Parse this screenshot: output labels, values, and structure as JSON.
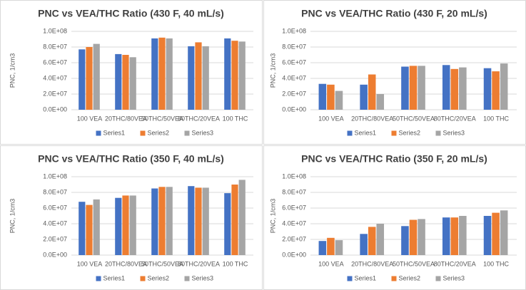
{
  "chart_data": [
    {
      "type": "bar",
      "title": "PNC vs VEA/THC Ratio (430 F, 40 mL/s)",
      "y_label": "PNC, 1/cm3",
      "categories": [
        "100 VEA",
        "20THC/80VEA",
        "50THC/50VEA",
        "80THC/20VEA",
        "100 THC"
      ],
      "series": [
        {
          "name": "Series1",
          "color": "#4472c4",
          "values": [
            77000000,
            71000000,
            91000000,
            81000000,
            91000000
          ]
        },
        {
          "name": "Series2",
          "color": "#ed7d31",
          "values": [
            80000000,
            70000000,
            92000000,
            86000000,
            88000000
          ]
        },
        {
          "name": "Series3",
          "color": "#a5a5a5",
          "values": [
            84000000,
            67000000,
            91000000,
            81000000,
            87000000
          ]
        }
      ],
      "ylim": [
        0,
        100000000
      ],
      "yticks": [
        {
          "value": 0,
          "label": "0.0E+00"
        },
        {
          "value": 20000000,
          "label": "2.0E+07"
        },
        {
          "value": 40000000,
          "label": "4.0E+07"
        },
        {
          "value": 60000000,
          "label": "6.0E+07"
        },
        {
          "value": 80000000,
          "label": "8.0E+07"
        },
        {
          "value": 100000000,
          "label": "1.0E+08"
        }
      ],
      "grid": true,
      "legend": "bottom"
    },
    {
      "type": "bar",
      "title": "PNC vs VEA/THC Ratio (430 F, 20 mL/s)",
      "y_label": "PNC, 1/cm3",
      "categories": [
        "100 VEA",
        "20THC/80VEA",
        "50THC/50VEA",
        "80THC/20VEA",
        "100 THC"
      ],
      "series": [
        {
          "name": "Series1",
          "color": "#4472c4",
          "values": [
            33000000,
            32000000,
            55000000,
            57000000,
            53000000
          ]
        },
        {
          "name": "Series2",
          "color": "#ed7d31",
          "values": [
            32000000,
            45000000,
            56000000,
            52000000,
            49000000
          ]
        },
        {
          "name": "Series3",
          "color": "#a5a5a5",
          "values": [
            24000000,
            20000000,
            56000000,
            54000000,
            59000000
          ]
        }
      ],
      "ylim": [
        0,
        100000000
      ],
      "yticks": [
        {
          "value": 0,
          "label": "0.0E+00"
        },
        {
          "value": 20000000,
          "label": "2.0E+07"
        },
        {
          "value": 40000000,
          "label": "4.0E+07"
        },
        {
          "value": 60000000,
          "label": "6.0E+07"
        },
        {
          "value": 80000000,
          "label": "8.0E+07"
        },
        {
          "value": 100000000,
          "label": "1.0E+08"
        }
      ],
      "grid": true,
      "legend": "bottom"
    },
    {
      "type": "bar",
      "title": "PNC vs VEA/THC Ratio (350 F, 40 mL/s)",
      "y_label": "PNC, 1/cm3",
      "categories": [
        "100 VEA",
        "20THC/80VEA",
        "50THC/50VEA",
        "80THC/20VEA",
        "100 THC"
      ],
      "series": [
        {
          "name": "Series1",
          "color": "#4472c4",
          "values": [
            68000000,
            73000000,
            85000000,
            88000000,
            79000000
          ]
        },
        {
          "name": "Series2",
          "color": "#ed7d31",
          "values": [
            64000000,
            76000000,
            87000000,
            86000000,
            90000000
          ]
        },
        {
          "name": "Series3",
          "color": "#a5a5a5",
          "values": [
            71000000,
            76000000,
            87000000,
            86000000,
            96000000
          ]
        }
      ],
      "ylim": [
        0,
        100000000
      ],
      "yticks": [
        {
          "value": 0,
          "label": "0.0E+00"
        },
        {
          "value": 20000000,
          "label": "2.0E+07"
        },
        {
          "value": 40000000,
          "label": "4.0E+07"
        },
        {
          "value": 60000000,
          "label": "6.0E+07"
        },
        {
          "value": 80000000,
          "label": "8.0E+07"
        },
        {
          "value": 100000000,
          "label": "1.0E+08"
        }
      ],
      "grid": true,
      "legend": "bottom"
    },
    {
      "type": "bar",
      "title": "PNC vs VEA/THC Ratio (350 F, 20 mL/s)",
      "y_label": "PNC, 1/cm3",
      "categories": [
        "100 VEA",
        "20THC/80VEA",
        "50THC/50VEA",
        "80THC/20VEA",
        "100 THC"
      ],
      "series": [
        {
          "name": "Series1",
          "color": "#4472c4",
          "values": [
            18000000,
            27000000,
            37000000,
            48000000,
            50000000
          ]
        },
        {
          "name": "Series2",
          "color": "#ed7d31",
          "values": [
            22000000,
            36000000,
            45000000,
            48000000,
            54000000
          ]
        },
        {
          "name": "Series3",
          "color": "#a5a5a5",
          "values": [
            19000000,
            40000000,
            46000000,
            50000000,
            57000000
          ]
        }
      ],
      "ylim": [
        0,
        100000000
      ],
      "yticks": [
        {
          "value": 0,
          "label": "0.0E+00"
        },
        {
          "value": 20000000,
          "label": "2.0E+07"
        },
        {
          "value": 40000000,
          "label": "4.0E+07"
        },
        {
          "value": 60000000,
          "label": "6.0E+07"
        },
        {
          "value": 80000000,
          "label": "8.0E+07"
        },
        {
          "value": 100000000,
          "label": "1.0E+08"
        }
      ],
      "grid": true,
      "legend": "bottom"
    }
  ]
}
